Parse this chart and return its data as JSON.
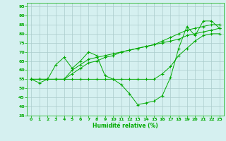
{
  "xlabel": "Humidité relative (%)",
  "background_color": "#d5f0f0",
  "line_color": "#00aa00",
  "grid_color": "#aacccc",
  "xlim": [
    -0.5,
    23.5
  ],
  "ylim": [
    35,
    97
  ],
  "yticks": [
    35,
    40,
    45,
    50,
    55,
    60,
    65,
    70,
    75,
    80,
    85,
    90,
    95
  ],
  "xticks": [
    0,
    1,
    2,
    3,
    4,
    5,
    6,
    7,
    8,
    9,
    10,
    11,
    12,
    13,
    14,
    15,
    16,
    17,
    18,
    19,
    20,
    21,
    22,
    23
  ],
  "series": [
    [
      55,
      53,
      55,
      63,
      67,
      61,
      65,
      70,
      68,
      57,
      55,
      52,
      47,
      41,
      42,
      43,
      46,
      56,
      72,
      84,
      79,
      87,
      87,
      83
    ],
    [
      55,
      55,
      55,
      55,
      55,
      55,
      55,
      55,
      55,
      55,
      55,
      55,
      55,
      55,
      55,
      55,
      58,
      62,
      68,
      72,
      76,
      79,
      80,
      80
    ],
    [
      55,
      55,
      55,
      55,
      55,
      58,
      61,
      64,
      65,
      67,
      68,
      70,
      71,
      72,
      73,
      74,
      75,
      76,
      77,
      79,
      80,
      81,
      82,
      83
    ],
    [
      55,
      55,
      55,
      55,
      55,
      60,
      63,
      66,
      67,
      68,
      69,
      70,
      71,
      72,
      73,
      74,
      76,
      78,
      80,
      82,
      83,
      84,
      85,
      85
    ]
  ]
}
